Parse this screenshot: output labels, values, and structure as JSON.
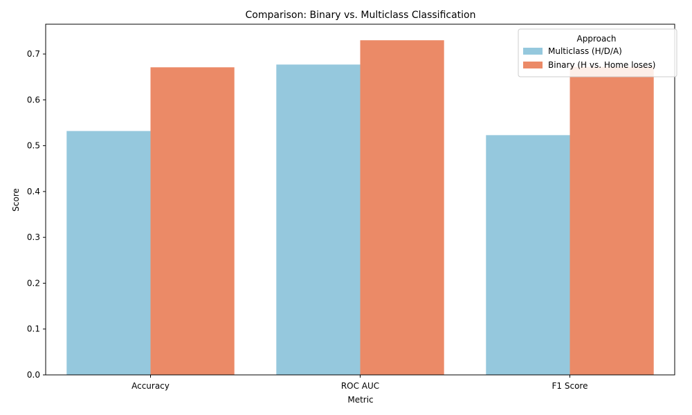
{
  "chart_data": {
    "type": "bar",
    "title": "Comparison: Binary vs. Multiclass Classification",
    "xlabel": "Metric",
    "ylabel": "Score",
    "categories": [
      "Accuracy",
      "ROC AUC",
      "F1 Score"
    ],
    "series": [
      {
        "name": "Multiclass (H/D/A)",
        "values": [
          0.532,
          0.677,
          0.523
        ],
        "color": "#95c8dd"
      },
      {
        "name": "Binary (H vs. Home loses)",
        "values": [
          0.671,
          0.73,
          0.672
        ],
        "color": "#eb8a67"
      }
    ],
    "ylim": [
      0,
      0.765
    ],
    "yticks": [
      "0.0",
      "0.1",
      "0.2",
      "0.3",
      "0.4",
      "0.5",
      "0.6",
      "0.7"
    ],
    "legend": {
      "title": "Approach",
      "position": "top-right"
    },
    "grid": false
  }
}
